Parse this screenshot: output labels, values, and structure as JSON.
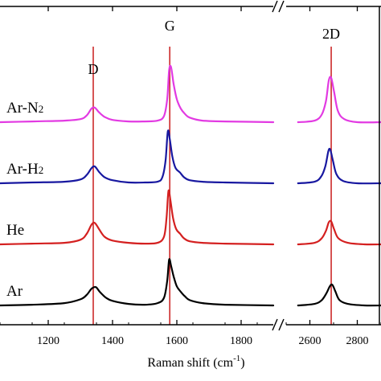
{
  "chart_data": {
    "type": "line",
    "xlabel": "Raman shift (cm",
    "xlabel_sup": "-1",
    "xlabel_close": ")",
    "ylabel": "",
    "x_segments": [
      {
        "xlim": [
          1050,
          1900
        ],
        "ticks": [
          1200,
          1400,
          1600,
          1800
        ]
      },
      {
        "xlim": [
          2500,
          2900
        ],
        "ticks": [
          2600,
          2800
        ]
      }
    ],
    "axis_break_mark": "//",
    "peak_lines": [
      {
        "label": "D",
        "x": 1340,
        "color": "#cc2a2a"
      },
      {
        "label": "G",
        "x": 1578,
        "color": "#cc2a2a"
      },
      {
        "label": "2D",
        "x": 2690,
        "color": "#cc2a2a"
      }
    ],
    "series": [
      {
        "name": "Ar",
        "name_sub": "",
        "color": "#000000",
        "offset": 0,
        "points": [
          [
            1050,
            0.0
          ],
          [
            1150,
            0.01
          ],
          [
            1250,
            0.03
          ],
          [
            1300,
            0.08
          ],
          [
            1320,
            0.14
          ],
          [
            1335,
            0.22
          ],
          [
            1348,
            0.24
          ],
          [
            1360,
            0.18
          ],
          [
            1380,
            0.1
          ],
          [
            1400,
            0.06
          ],
          [
            1450,
            0.02
          ],
          [
            1500,
            0.01
          ],
          [
            1540,
            0.03
          ],
          [
            1560,
            0.1
          ],
          [
            1570,
            0.32
          ],
          [
            1576,
            0.6
          ],
          [
            1582,
            0.52
          ],
          [
            1590,
            0.38
          ],
          [
            1600,
            0.25
          ],
          [
            1612,
            0.18
          ],
          [
            1625,
            0.12
          ],
          [
            1640,
            0.07
          ],
          [
            1680,
            0.03
          ],
          [
            1750,
            0.01
          ],
          [
            1900,
            0.0
          ],
          [
            2550,
            0.0
          ],
          [
            2620,
            0.02
          ],
          [
            2650,
            0.07
          ],
          [
            2670,
            0.16
          ],
          [
            2684,
            0.25
          ],
          [
            2695,
            0.27
          ],
          [
            2708,
            0.18
          ],
          [
            2725,
            0.07
          ],
          [
            2760,
            0.02
          ],
          [
            2830,
            0.0
          ],
          [
            2900,
            0.0
          ]
        ]
      },
      {
        "name": "He",
        "name_sub": "",
        "color": "#d42020",
        "offset": 0.8,
        "points": [
          [
            1050,
            0.0
          ],
          [
            1150,
            0.01
          ],
          [
            1250,
            0.02
          ],
          [
            1300,
            0.06
          ],
          [
            1320,
            0.14
          ],
          [
            1335,
            0.26
          ],
          [
            1345,
            0.28
          ],
          [
            1358,
            0.2
          ],
          [
            1375,
            0.1
          ],
          [
            1400,
            0.05
          ],
          [
            1450,
            0.02
          ],
          [
            1500,
            0.01
          ],
          [
            1540,
            0.02
          ],
          [
            1560,
            0.1
          ],
          [
            1568,
            0.35
          ],
          [
            1574,
            0.7
          ],
          [
            1580,
            0.58
          ],
          [
            1588,
            0.35
          ],
          [
            1598,
            0.2
          ],
          [
            1610,
            0.14
          ],
          [
            1622,
            0.08
          ],
          [
            1640,
            0.04
          ],
          [
            1680,
            0.02
          ],
          [
            1750,
            0.01
          ],
          [
            1900,
            0.0
          ],
          [
            2550,
            0.0
          ],
          [
            2620,
            0.02
          ],
          [
            2650,
            0.08
          ],
          [
            2668,
            0.18
          ],
          [
            2680,
            0.29
          ],
          [
            2690,
            0.3
          ],
          [
            2702,
            0.2
          ],
          [
            2720,
            0.08
          ],
          [
            2760,
            0.02
          ],
          [
            2830,
            0.0
          ],
          [
            2900,
            0.0
          ]
        ]
      },
      {
        "name": "Ar-H",
        "name_sub": "2",
        "color": "#1818a0",
        "offset": 1.6,
        "points": [
          [
            1050,
            0.0
          ],
          [
            1150,
            0.01
          ],
          [
            1250,
            0.02
          ],
          [
            1300,
            0.05
          ],
          [
            1320,
            0.11
          ],
          [
            1335,
            0.2
          ],
          [
            1345,
            0.22
          ],
          [
            1358,
            0.15
          ],
          [
            1375,
            0.08
          ],
          [
            1400,
            0.04
          ],
          [
            1450,
            0.01
          ],
          [
            1500,
            0.01
          ],
          [
            1540,
            0.02
          ],
          [
            1555,
            0.08
          ],
          [
            1565,
            0.3
          ],
          [
            1572,
            0.68
          ],
          [
            1578,
            0.58
          ],
          [
            1586,
            0.35
          ],
          [
            1596,
            0.2
          ],
          [
            1610,
            0.14
          ],
          [
            1622,
            0.08
          ],
          [
            1640,
            0.04
          ],
          [
            1680,
            0.02
          ],
          [
            1750,
            0.01
          ],
          [
            1900,
            0.0
          ],
          [
            2550,
            0.0
          ],
          [
            2620,
            0.02
          ],
          [
            2648,
            0.09
          ],
          [
            2665,
            0.22
          ],
          [
            2678,
            0.42
          ],
          [
            2686,
            0.44
          ],
          [
            2697,
            0.3
          ],
          [
            2712,
            0.12
          ],
          [
            2740,
            0.03
          ],
          [
            2800,
            0.0
          ],
          [
            2900,
            0.0
          ]
        ]
      },
      {
        "name": "Ar-N",
        "name_sub": "2",
        "color": "#e23ae2",
        "offset": 2.4,
        "points": [
          [
            1050,
            0.0
          ],
          [
            1150,
            0.01
          ],
          [
            1250,
            0.02
          ],
          [
            1300,
            0.04
          ],
          [
            1320,
            0.09
          ],
          [
            1335,
            0.18
          ],
          [
            1345,
            0.19
          ],
          [
            1358,
            0.13
          ],
          [
            1375,
            0.07
          ],
          [
            1400,
            0.03
          ],
          [
            1450,
            0.01
          ],
          [
            1500,
            0.01
          ],
          [
            1540,
            0.02
          ],
          [
            1560,
            0.08
          ],
          [
            1570,
            0.3
          ],
          [
            1576,
            0.68
          ],
          [
            1582,
            0.72
          ],
          [
            1590,
            0.5
          ],
          [
            1600,
            0.3
          ],
          [
            1612,
            0.18
          ],
          [
            1625,
            0.11
          ],
          [
            1640,
            0.06
          ],
          [
            1680,
            0.02
          ],
          [
            1750,
            0.01
          ],
          [
            1900,
            0.0
          ],
          [
            2550,
            0.0
          ],
          [
            2620,
            0.02
          ],
          [
            2650,
            0.1
          ],
          [
            2668,
            0.28
          ],
          [
            2680,
            0.55
          ],
          [
            2690,
            0.58
          ],
          [
            2702,
            0.4
          ],
          [
            2718,
            0.15
          ],
          [
            2745,
            0.04
          ],
          [
            2800,
            0.0
          ],
          [
            2900,
            0.0
          ]
        ]
      }
    ]
  }
}
